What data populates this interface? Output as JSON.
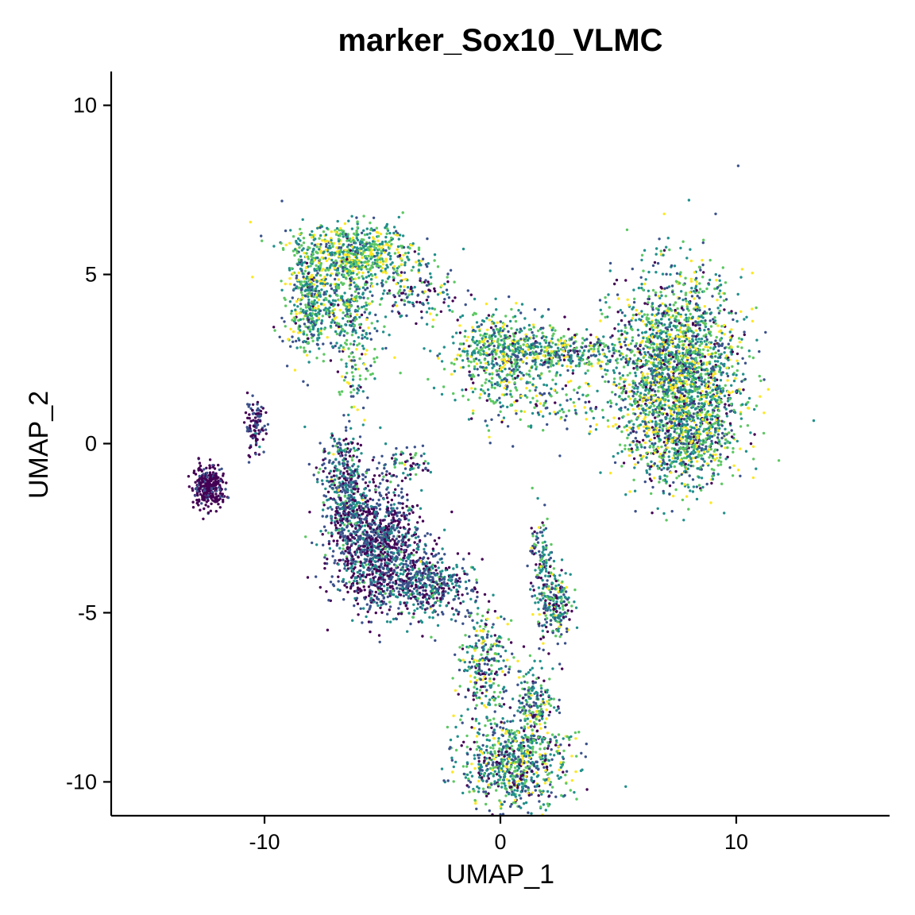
{
  "chart_data": {
    "type": "scatter",
    "title": "marker_Sox10_VLMC",
    "xlabel": "UMAP_1",
    "ylabel": "UMAP_2",
    "xlim": [
      -16.5,
      16.5
    ],
    "ylim": [
      -11,
      11
    ],
    "xticks": [
      -10,
      0,
      10
    ],
    "yticks": [
      -10,
      -5,
      0,
      5,
      10
    ],
    "grid": false,
    "legend": "none",
    "colormap": [
      "#440154",
      "#3b528b",
      "#21908c",
      "#5dc863",
      "#fde725"
    ],
    "clusters": [
      {
        "region": "small-left-blob",
        "cx": -12.4,
        "cy": -1.25,
        "sx": 0.32,
        "sy": 0.3,
        "n": 320,
        "mean_level": 0.05,
        "spread": 0.08
      },
      {
        "region": "small-left-strip",
        "cx": -10.4,
        "cy": 0.5,
        "sx": 0.22,
        "sy": 0.35,
        "n": 110,
        "mean_level": 0.12,
        "spread": 0.12
      },
      {
        "region": "top-left-arc-upper",
        "cx": -6.2,
        "cy": 5.6,
        "sx": 1.3,
        "sy": 0.45,
        "n": 700,
        "mean_level": 0.68,
        "spread": 0.25
      },
      {
        "region": "top-left-arc-left",
        "cx": -8.2,
        "cy": 4.3,
        "sx": 0.45,
        "sy": 0.9,
        "n": 320,
        "mean_level": 0.58,
        "spread": 0.25
      },
      {
        "region": "top-left-arc-lower",
        "cx": -6.8,
        "cy": 3.9,
        "sx": 1.0,
        "sy": 0.6,
        "n": 330,
        "mean_level": 0.55,
        "spread": 0.25
      },
      {
        "region": "top-left-tail",
        "cx": -6.1,
        "cy": 2.4,
        "sx": 0.35,
        "sy": 0.8,
        "n": 90,
        "mean_level": 0.6,
        "spread": 0.28
      },
      {
        "region": "bridge-diagonal",
        "cx": -3.5,
        "cy": 4.5,
        "sx": 0.9,
        "sy": 0.45,
        "n": 130,
        "mean_level": 0.45,
        "spread": 0.3
      },
      {
        "region": "center-node",
        "cx": 0.0,
        "cy": 2.7,
        "sx": 1.1,
        "sy": 0.6,
        "n": 560,
        "mean_level": 0.6,
        "spread": 0.28
      },
      {
        "region": "center-bridge",
        "cx": 2.8,
        "cy": 2.7,
        "sx": 1.3,
        "sy": 0.3,
        "n": 300,
        "mean_level": 0.55,
        "spread": 0.28
      },
      {
        "region": "center-low-branch",
        "cx": 1.6,
        "cy": 1.2,
        "sx": 1.5,
        "sy": 0.5,
        "n": 160,
        "mean_level": 0.55,
        "spread": 0.3
      },
      {
        "region": "right-lobe",
        "cx": 7.5,
        "cy": 2.0,
        "sx": 1.35,
        "sy": 1.45,
        "n": 2300,
        "mean_level": 0.55,
        "spread": 0.32
      },
      {
        "region": "right-lobe-lower",
        "cx": 7.8,
        "cy": 0.0,
        "sx": 1.0,
        "sy": 0.55,
        "n": 380,
        "mean_level": 0.55,
        "spread": 0.32
      },
      {
        "region": "lower-left-arm-top",
        "cx": -6.6,
        "cy": -1.4,
        "sx": 0.5,
        "sy": 0.9,
        "n": 480,
        "mean_level": 0.3,
        "spread": 0.25
      },
      {
        "region": "lower-left-arm-main",
        "cx": -5.2,
        "cy": -3.1,
        "sx": 0.95,
        "sy": 0.9,
        "n": 1150,
        "mean_level": 0.2,
        "spread": 0.22
      },
      {
        "region": "lower-arm-right",
        "cx": -3.0,
        "cy": -4.2,
        "sx": 0.9,
        "sy": 0.45,
        "n": 420,
        "mean_level": 0.28,
        "spread": 0.25
      },
      {
        "region": "lower-arm-outer",
        "cx": -4.1,
        "cy": -0.6,
        "sx": 0.5,
        "sy": 0.3,
        "n": 70,
        "mean_level": 0.35,
        "spread": 0.25
      },
      {
        "region": "bottom-stem",
        "cx": -0.7,
        "cy": -6.5,
        "sx": 0.6,
        "sy": 0.9,
        "n": 280,
        "mean_level": 0.5,
        "spread": 0.3
      },
      {
        "region": "bottom-right-branch",
        "cx": 2.3,
        "cy": -4.8,
        "sx": 0.35,
        "sy": 0.55,
        "n": 220,
        "mean_level": 0.45,
        "spread": 0.3
      },
      {
        "region": "right-branch-stem",
        "cx": 1.7,
        "cy": -3.4,
        "sx": 0.22,
        "sy": 0.7,
        "n": 110,
        "mean_level": 0.45,
        "spread": 0.3
      },
      {
        "region": "bottom-fan",
        "cx": 0.6,
        "cy": -9.5,
        "sx": 1.1,
        "sy": 0.7,
        "n": 780,
        "mean_level": 0.5,
        "spread": 0.3
      },
      {
        "region": "bottom-upper-fan",
        "cx": 1.5,
        "cy": -7.7,
        "sx": 0.45,
        "sy": 0.6,
        "n": 180,
        "mean_level": 0.5,
        "spread": 0.3
      }
    ]
  }
}
